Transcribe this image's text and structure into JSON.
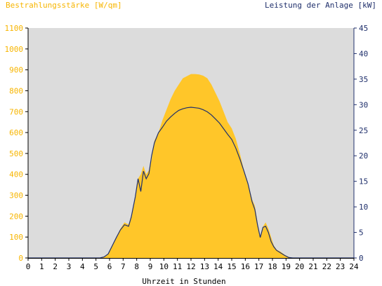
{
  "titles": {
    "left_axis": "Bestrahlungsstärke [W/qm]",
    "right_axis": "Leistung der Anlage [kW]",
    "x_axis": "Uhrzeit in Stunden"
  },
  "colors": {
    "plot_bg": "#dcdcdc",
    "irradiance_fill": "#ffc629",
    "irradiance_text": "#f7b500",
    "power_line": "#1f2f6b",
    "axis": "#000000"
  },
  "chart_data": {
    "type": "area",
    "x_unit": "hours",
    "xlim": [
      0,
      24
    ],
    "x_ticks": [
      "0",
      "1",
      "2",
      "3",
      "4",
      "5",
      "6",
      "7",
      "8",
      "9",
      "10",
      "11",
      "12",
      "13",
      "14",
      "15",
      "16",
      "17",
      "18",
      "19",
      "20",
      "21",
      "22",
      "23",
      "24"
    ],
    "y_left": {
      "label": "Bestrahlungsstärke [W/qm]",
      "lim": [
        0,
        1100
      ],
      "ticks": [
        "0",
        "100",
        "200",
        "300",
        "400",
        "500",
        "600",
        "700",
        "800",
        "900",
        "1000",
        "1100"
      ]
    },
    "y_right": {
      "label": "Leistung der Anlage [kW]",
      "lim": [
        0,
        45
      ],
      "ticks": [
        "0",
        "5",
        "10",
        "15",
        "20",
        "25",
        "30",
        "35",
        "40",
        "45"
      ]
    },
    "grid": false,
    "series": [
      {
        "axis": "left",
        "style": "area",
        "x": [
          5.3,
          5.6,
          5.9,
          6.2,
          6.5,
          6.8,
          7.1,
          7.4,
          7.6,
          7.9,
          8.1,
          8.3,
          8.5,
          8.7,
          8.9,
          9.1,
          9.3,
          9.6,
          9.9,
          10.2,
          10.5,
          10.8,
          11.1,
          11.4,
          11.7,
          12.0,
          12.3,
          12.6,
          12.9,
          13.2,
          13.5,
          13.8,
          14.1,
          14.4,
          14.7,
          15.0,
          15.3,
          15.6,
          15.9,
          16.2,
          16.5,
          16.7,
          16.9,
          17.1,
          17.3,
          17.5,
          17.7,
          17.9,
          18.1,
          18.3,
          18.6,
          18.9,
          19.2,
          19.5,
          19.8
        ],
        "y": [
          0,
          5,
          20,
          60,
          100,
          140,
          170,
          160,
          200,
          290,
          380,
          400,
          440,
          400,
          420,
          470,
          560,
          600,
          660,
          710,
          760,
          800,
          830,
          860,
          870,
          880,
          880,
          878,
          872,
          860,
          830,
          790,
          750,
          700,
          650,
          620,
          570,
          500,
          420,
          360,
          280,
          250,
          170,
          100,
          150,
          170,
          140,
          100,
          60,
          40,
          30,
          15,
          5,
          0,
          0
        ]
      },
      {
        "axis": "right",
        "style": "line",
        "x": [
          5.3,
          5.6,
          5.9,
          6.2,
          6.5,
          6.8,
          7.1,
          7.4,
          7.6,
          7.9,
          8.1,
          8.3,
          8.5,
          8.7,
          8.9,
          9.1,
          9.3,
          9.6,
          9.9,
          10.2,
          10.5,
          10.8,
          11.1,
          11.4,
          11.7,
          12.0,
          12.3,
          12.6,
          12.9,
          13.2,
          13.5,
          13.8,
          14.1,
          14.4,
          14.7,
          15.0,
          15.3,
          15.6,
          15.9,
          16.2,
          16.5,
          16.7,
          16.9,
          17.1,
          17.3,
          17.5,
          17.7,
          17.9,
          18.1,
          18.3,
          18.6,
          18.9,
          19.2,
          19.5,
          19.8
        ],
        "y": [
          0,
          0.2,
          0.8,
          2.4,
          4.0,
          5.5,
          6.5,
          6.2,
          8.0,
          12.0,
          15.5,
          13.0,
          17.0,
          15.5,
          16.5,
          20.0,
          22.5,
          24.5,
          25.6,
          26.8,
          27.6,
          28.3,
          28.9,
          29.2,
          29.4,
          29.5,
          29.4,
          29.3,
          29.0,
          28.6,
          28.0,
          27.2,
          26.4,
          25.3,
          24.2,
          23.2,
          21.5,
          19.4,
          17.0,
          14.5,
          11.0,
          9.5,
          6.5,
          4.0,
          6.0,
          6.2,
          5.0,
          3.2,
          2.2,
          1.5,
          1.0,
          0.5,
          0.1,
          0,
          0
        ]
      }
    ]
  }
}
